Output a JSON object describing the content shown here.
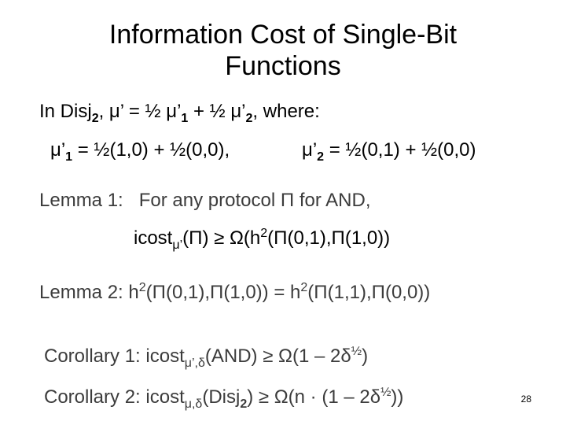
{
  "slide": {
    "title_line1": "Information Cost of Single-Bit",
    "title_line2": "Functions",
    "intro": {
      "prefix": "In Disj",
      "disj_sub": "2",
      "eq": ", μ’ = ½ μ’",
      "sub1": "1",
      "plus": " + ½ μ’",
      "sub2": "2",
      "suffix": ", where:"
    },
    "mu1": {
      "pre": "μ’",
      "sub": "1",
      "post": " = ½(1,0) + ½(0,0),"
    },
    "mu2": {
      "pre": "μ’",
      "sub": "2",
      "post": " = ½(0,1) + ½(0,0)"
    },
    "lemma1": {
      "label": "Lemma 1:",
      "text": "For any protocol Π for AND,"
    },
    "lemma1_formula": {
      "pre": "icost",
      "sub": "μ’",
      "mid": "(Π) ≥ Ω(h",
      "sup": "2",
      "post": "(Π(0,1),Π(1,0))"
    },
    "lemma2": {
      "label": "Lemma 2:",
      "a": "h",
      "sup1": "2",
      "b": "(Π(0,1),Π(1,0)) = h",
      "sup2": "2",
      "c": "(Π(1,1),Π(0,0))"
    },
    "corollary1": {
      "label": "Corollary 1:",
      "pre": "icost",
      "sub": "μ’,δ",
      "mid": "(AND) ≥ Ω(1 – 2δ",
      "sup": "½",
      "post": ")"
    },
    "corollary2": {
      "label": "Corollary 2:",
      "pre": "icost",
      "sub": "μ,δ",
      "mid": "(Disj",
      "sub2": "2",
      "mid2": ") ≥ Ω(n · (1 – 2δ",
      "sup": "½",
      "post": "))"
    },
    "page_number": "28"
  }
}
